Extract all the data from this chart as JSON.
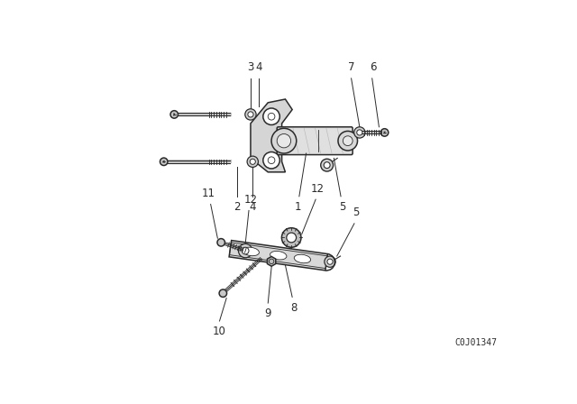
{
  "bg_color": "#ffffff",
  "line_color": "#2a2a2a",
  "part_number_text": "C0J01347",
  "lw": 1.1,
  "thin_lw": 0.6,
  "label_fs": 8.5
}
